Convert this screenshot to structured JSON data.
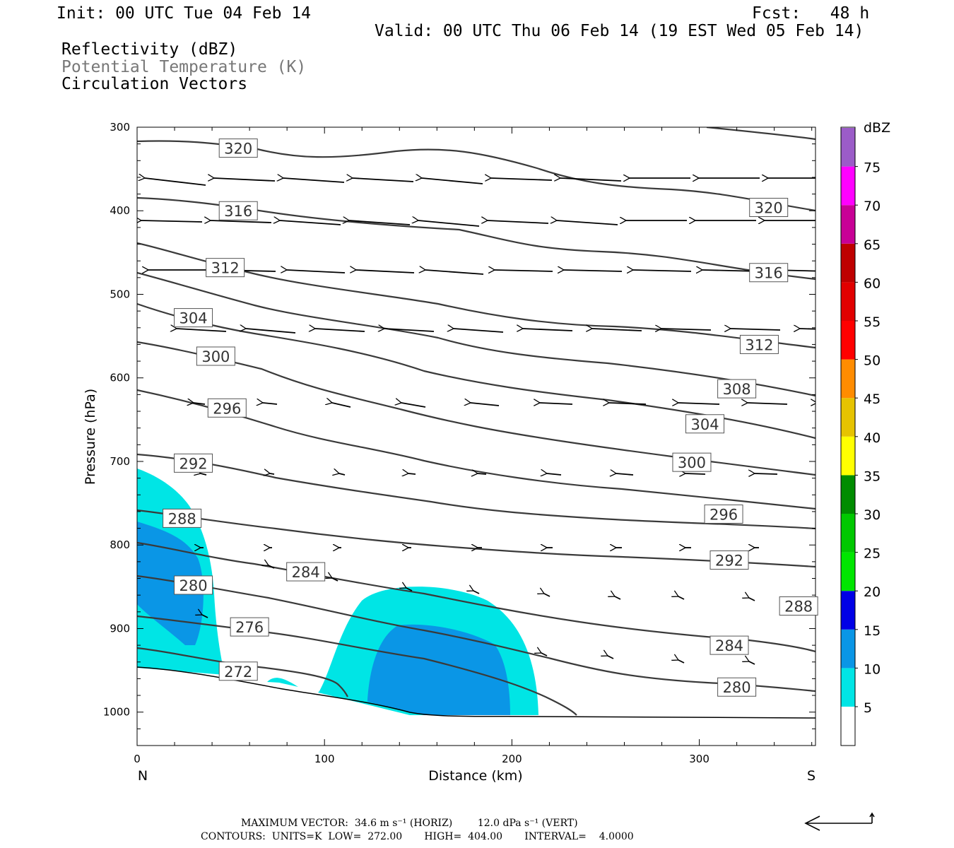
{
  "header": {
    "init": "Init: 00 UTC Tue 04 Feb 14",
    "fcst": "Fcst:   48 h",
    "valid": "Valid: 00 UTC Thu 06 Feb 14 (19 EST Wed 05 Feb 14)",
    "field1": "Reflectivity (dBZ)",
    "field2": "Potential Temperature (K)",
    "field3": "Circulation Vectors"
  },
  "colorbar": {
    "unit": "dBZ",
    "levels": [
      "5",
      "10",
      "15",
      "20",
      "25",
      "30",
      "35",
      "40",
      "45",
      "50",
      "55",
      "60",
      "65",
      "70",
      "75"
    ],
    "colors": [
      "#00e5e5",
      "#0a96e6",
      "#0000e6",
      "#00e600",
      "#00c800",
      "#008c00",
      "#ffff00",
      "#e6c300",
      "#ff8c00",
      "#ff0000",
      "#e10000",
      "#be0000",
      "#c80096",
      "#ff00ff",
      "#9b5cc8"
    ]
  },
  "footer": {
    "max_vector": "MAXIMUM VECTOR:  34.6 m s⁻¹ (HORIZ)        12.0 dPa s⁻¹ (VERT)",
    "contours": "CONTOURS:  UNITS=K  LOW=  272.00       HIGH=  404.00       INTERVAL=    4.0000"
  },
  "chart_data": {
    "type": "cross-section",
    "xlabel": "Distance (km)",
    "ylabel": "Pressure (hPa)",
    "xlim": [
      0,
      362
    ],
    "ylim": [
      1040,
      300
    ],
    "x_ticks": [
      "0",
      "100",
      "200",
      "300"
    ],
    "y_ticks": [
      "300",
      "400",
      "500",
      "600",
      "700",
      "800",
      "900",
      "1000"
    ],
    "left_end": "N",
    "right_end": "S",
    "contour_labels": [
      {
        "text": "320",
        "x": 54,
        "p": 325
      },
      {
        "text": "316",
        "x": 54,
        "p": 400
      },
      {
        "text": "312",
        "x": 47,
        "p": 468
      },
      {
        "text": "304",
        "x": 30,
        "p": 528
      },
      {
        "text": "300",
        "x": 42,
        "p": 574
      },
      {
        "text": "296",
        "x": 48,
        "p": 636
      },
      {
        "text": "292",
        "x": 30,
        "p": 702
      },
      {
        "text": "288",
        "x": 24,
        "p": 768
      },
      {
        "text": "284",
        "x": 90,
        "p": 832
      },
      {
        "text": "280",
        "x": 30,
        "p": 848
      },
      {
        "text": "276",
        "x": 60,
        "p": 898
      },
      {
        "text": "272",
        "x": 54,
        "p": 951
      },
      {
        "text": "320",
        "x": 337,
        "p": 396
      },
      {
        "text": "316",
        "x": 337,
        "p": 474
      },
      {
        "text": "312",
        "x": 332,
        "p": 560
      },
      {
        "text": "308",
        "x": 320,
        "p": 613
      },
      {
        "text": "304",
        "x": 303,
        "p": 655
      },
      {
        "text": "300",
        "x": 296,
        "p": 701
      },
      {
        "text": "296",
        "x": 313,
        "p": 763
      },
      {
        "text": "292",
        "x": 316,
        "p": 818
      },
      {
        "text": "288",
        "x": 353,
        "p": 873
      },
      {
        "text": "284",
        "x": 316,
        "p": 920
      },
      {
        "text": "280",
        "x": 320,
        "p": 970
      }
    ]
  }
}
